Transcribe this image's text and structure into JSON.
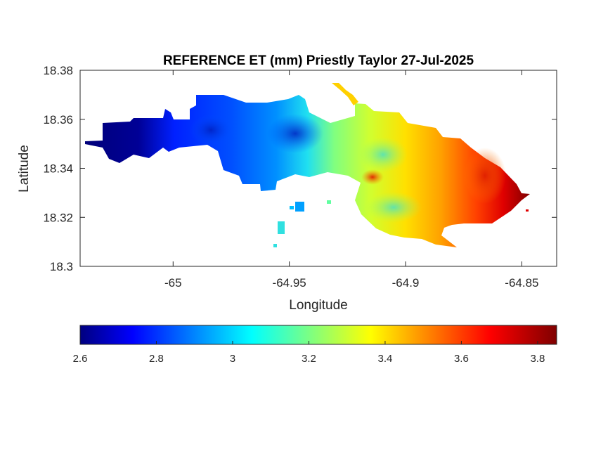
{
  "chart_data": {
    "type": "heatmap",
    "title": "REFERENCE ET (mm) Priestly Taylor 27-Jul-2025",
    "xlabel": "Longitude",
    "ylabel": "Latitude",
    "xlim": [
      -65.04,
      -64.835
    ],
    "ylim": [
      18.3,
      18.38
    ],
    "xticks": [
      -65,
      -64.95,
      -64.9,
      -64.85
    ],
    "xtick_labels": [
      "-65",
      "-64.95",
      "-64.9",
      "-64.85"
    ],
    "yticks": [
      18.3,
      18.32,
      18.34,
      18.36,
      18.38
    ],
    "ytick_labels": [
      "18.3",
      "18.32",
      "18.34",
      "18.36",
      "18.38"
    ],
    "grid": false,
    "colormap": "jet",
    "colorbar": {
      "location": "below",
      "limits": [
        2.6,
        3.85
      ],
      "ticks": [
        2.6,
        2.8,
        3.0,
        3.2,
        3.4,
        3.6,
        3.8
      ],
      "tick_labels": [
        "2.6",
        "2.8",
        "3",
        "3.2",
        "3.4",
        "3.6",
        "3.8"
      ]
    },
    "values_summary": {
      "min_west": 2.6,
      "max_east": 3.85
    }
  }
}
